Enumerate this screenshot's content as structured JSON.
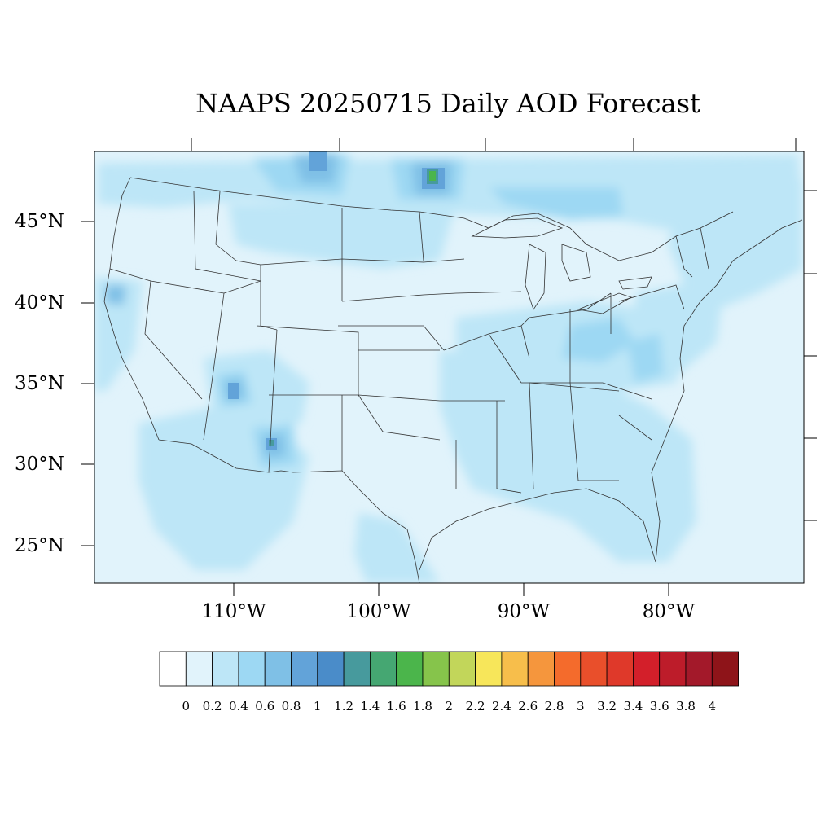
{
  "title": "NAAPS 20250715 Daily AOD Forecast",
  "map": {
    "lat_labels": [
      "45°N",
      "40°N",
      "35°N",
      "30°N",
      "25°N"
    ],
    "lon_labels": [
      "110°W",
      "100°W",
      "90°W",
      "80°W"
    ]
  },
  "colorbar": {
    "labels": [
      "0",
      "0.2",
      "0.4",
      "0.6",
      "0.8",
      "1",
      "1.2",
      "1.4",
      "1.6",
      "1.8",
      "2",
      "2.2",
      "2.4",
      "2.6",
      "2.8",
      "3",
      "3.2",
      "3.4",
      "3.6",
      "3.8",
      "4"
    ],
    "colors": [
      "#ffffff",
      "#e1f3fb",
      "#bde6f7",
      "#9dd8f3",
      "#7fc0e6",
      "#62a3d9",
      "#4a8cc9",
      "#479a9d",
      "#45a772",
      "#4bb54b",
      "#86c44b",
      "#c2d65a",
      "#f7e65a",
      "#f7be4b",
      "#f5963d",
      "#f46b2c",
      "#e94f2b",
      "#df392a",
      "#d31f2a",
      "#bd1c2a",
      "#a3192a",
      "#8e1419"
    ]
  }
}
